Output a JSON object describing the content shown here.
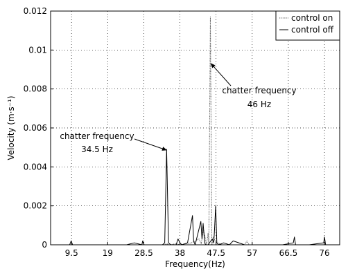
{
  "chart_data": {
    "type": "line",
    "title": "",
    "xlabel": "Frequency(Hz)",
    "ylabel": "Velocity (m·s⁻¹)",
    "xlim": [
      4,
      80
    ],
    "ylim": [
      0,
      0.012
    ],
    "x_ticks": [
      "9.5",
      "19",
      "28.5",
      "38",
      "47.5",
      "57",
      "66.5",
      "76"
    ],
    "y_ticks": [
      "0",
      "0.002",
      "0.004",
      "0.006",
      "0.008",
      "0.01",
      "0.012"
    ],
    "grid": true,
    "legend_position": "top-right",
    "series": [
      {
        "name": "control on",
        "style": "dotted",
        "color": "#555555",
        "x": [
          4,
          9,
          14,
          19,
          25,
          29,
          32,
          33.8,
          34.5,
          35.2,
          37,
          38,
          41,
          42.2,
          43,
          43.6,
          44.2,
          44.8,
          45,
          45.4,
          45.6,
          46,
          46.4,
          46.8,
          47.2,
          48,
          49,
          52,
          55,
          55.6,
          56.2,
          58,
          62,
          66,
          67,
          71,
          76,
          80
        ],
        "y": [
          0,
          0,
          0,
          0,
          0,
          0,
          0,
          0,
          5e-05,
          0,
          5e-05,
          0,
          0.0001,
          0.0002,
          0.0003,
          5e-05,
          0.0008,
          0.0002,
          0,
          0.0006,
          0,
          0.0117,
          0,
          0.0004,
          0.0002,
          0.0001,
          0,
          0,
          0,
          0.0002,
          0,
          0,
          0,
          0,
          0,
          0,
          0,
          0
        ]
      },
      {
        "name": "control off",
        "style": "solid",
        "color": "#000000",
        "x": [
          4,
          9,
          9.4,
          9.8,
          14,
          16,
          19,
          24,
          26,
          28,
          28.2,
          28.6,
          30,
          33.4,
          34,
          34.5,
          35,
          35.6,
          37,
          37.5,
          38,
          38.5,
          40,
          41.3,
          41.6,
          42,
          43.5,
          43.8,
          44.1,
          44.5,
          44.8,
          45.4,
          46.5,
          46.9,
          47.1,
          47.4,
          47.7,
          48.2,
          49.5,
          51,
          52,
          55,
          60,
          65,
          67.8,
          68.1,
          68.4,
          72,
          75.8,
          76,
          76.3,
          80
        ],
        "y": [
          0,
          0,
          0.0002,
          0,
          0,
          0,
          0,
          0,
          0.0001,
          0,
          0.0002,
          0,
          0,
          0,
          0.0001,
          0.0049,
          0.0001,
          0,
          0,
          0.0003,
          0.0001,
          0,
          0.0001,
          0.0015,
          0.0002,
          0,
          0.0012,
          0.0003,
          0.0011,
          0.0001,
          0,
          0,
          0.0003,
          0.0001,
          0.0008,
          0.002,
          0.0001,
          0,
          0.0001,
          0,
          0.0002,
          0,
          0,
          0,
          0.0001,
          0.0004,
          0,
          0,
          0.0001,
          0.0004,
          0,
          0
        ]
      }
    ],
    "annotations": [
      {
        "text": [
          "chatter frequency",
          "46 Hz"
        ],
        "target": [
          46,
          0.0093
        ]
      },
      {
        "text": [
          "chatter frequency",
          "34.5 Hz"
        ],
        "target": [
          34.6,
          0.0049
        ]
      }
    ]
  }
}
